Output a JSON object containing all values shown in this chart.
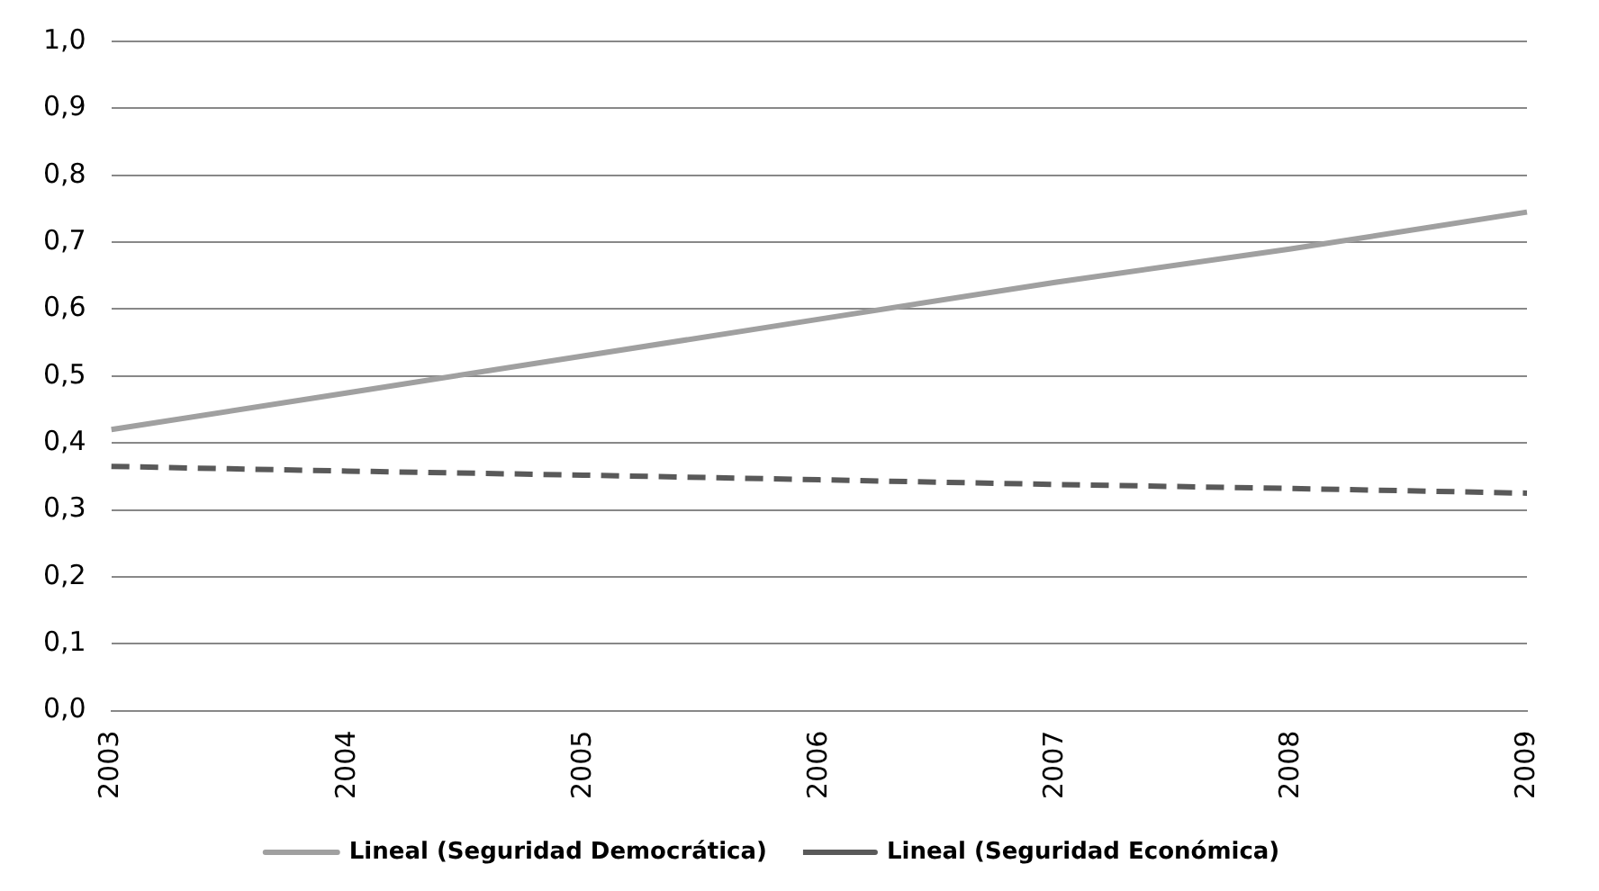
{
  "chart_data": {
    "type": "line",
    "categories": [
      "2003",
      "2004",
      "2005",
      "2006",
      "2007",
      "2008",
      "2009"
    ],
    "series": [
      {
        "name": "Lineal (Seguridad Democrática)",
        "color": "#a0a0a0",
        "line_style": "solid",
        "values": [
          0.42,
          0.475,
          0.53,
          0.585,
          0.64,
          0.69,
          0.745
        ]
      },
      {
        "name": "Lineal (Seguridad Económica)",
        "color": "#595959",
        "line_style": "dashed",
        "values": [
          0.365,
          0.358,
          0.352,
          0.345,
          0.338,
          0.332,
          0.325
        ]
      }
    ],
    "ylim": [
      0,
      1
    ],
    "yticks": [
      {
        "value": 0,
        "label": "0,0"
      },
      {
        "value": 0.1,
        "label": "0,1"
      },
      {
        "value": 0.2,
        "label": "0,2"
      },
      {
        "value": 0.3,
        "label": "0,3"
      },
      {
        "value": 0.4,
        "label": "0,4"
      },
      {
        "value": 0.5,
        "label": "0,5"
      },
      {
        "value": 0.6,
        "label": "0,6"
      },
      {
        "value": 0.7,
        "label": "0,7"
      },
      {
        "value": 0.8,
        "label": "0,8"
      },
      {
        "value": 0.9,
        "label": "0,9"
      },
      {
        "value": 1,
        "label": "1,0"
      }
    ],
    "grid": "y",
    "legend": "bottom",
    "marker": "none"
  }
}
